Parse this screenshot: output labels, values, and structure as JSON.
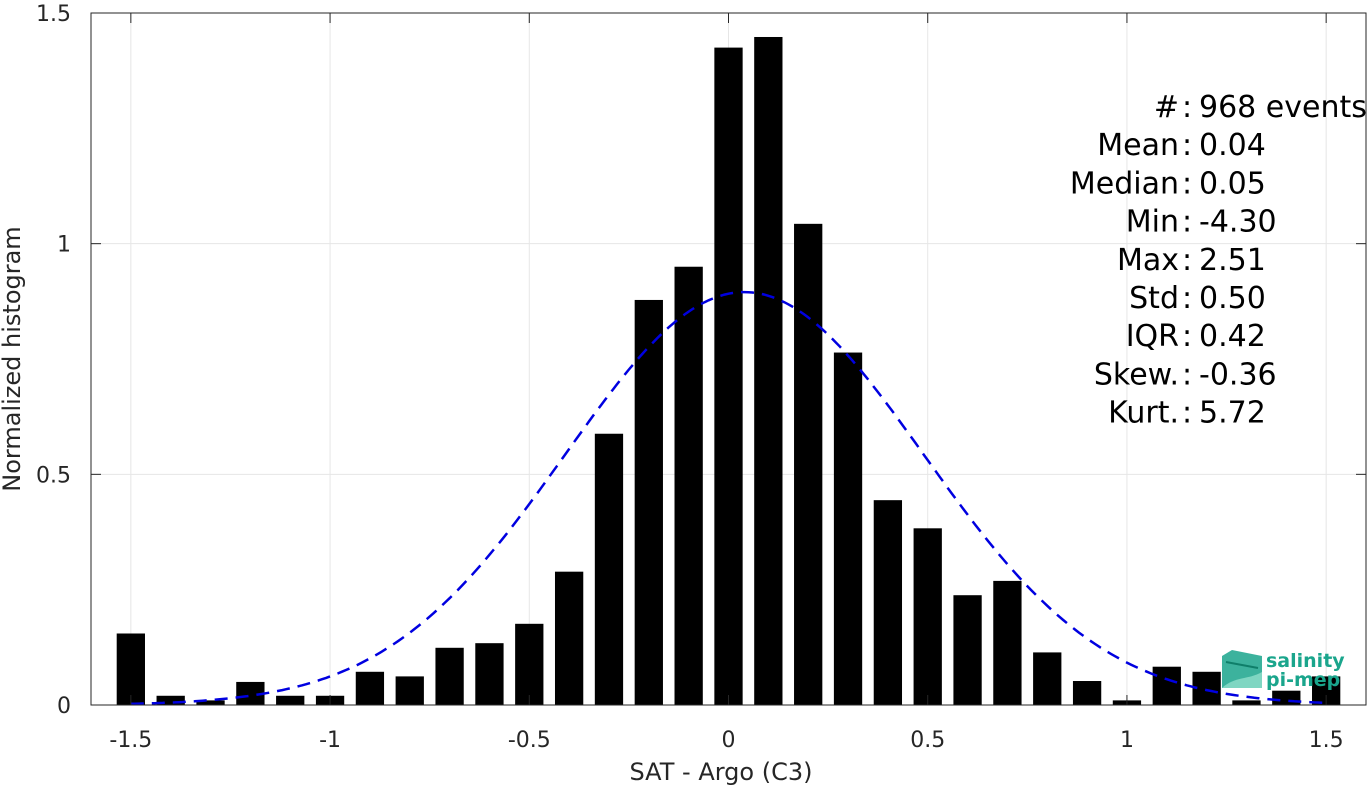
{
  "chart_data": {
    "type": "bar",
    "xlabel": "SAT - Argo (C3)",
    "ylabel": "Normalized histogram",
    "xlim": [
      -1.6,
      1.6
    ],
    "ylim": [
      0,
      1.5
    ],
    "xticks": [
      "-1.5",
      "-1",
      "-0.5",
      "0",
      "0.5",
      "1",
      "1.5"
    ],
    "yticks": [
      "0",
      "0.5",
      "1",
      "1.5"
    ],
    "grid": true,
    "bar_color": "#000000",
    "bin_width": 0.1,
    "x": [
      -1.5,
      -1.4,
      -1.3,
      -1.2,
      -1.1,
      -1.0,
      -0.9,
      -0.8,
      -0.7,
      -0.6,
      -0.5,
      -0.4,
      -0.3,
      -0.2,
      -0.1,
      0.0,
      0.1,
      0.2,
      0.3,
      0.4,
      0.5,
      0.6,
      0.7,
      0.8,
      0.9,
      1.0,
      1.1,
      1.2,
      1.3,
      1.4,
      1.5
    ],
    "values": [
      0.155,
      0.02,
      0.01,
      0.05,
      0.02,
      0.02,
      0.072,
      0.062,
      0.124,
      0.134,
      0.176,
      0.289,
      0.588,
      0.878,
      0.95,
      1.425,
      1.448,
      1.043,
      0.764,
      0.444,
      0.383,
      0.238,
      0.269,
      0.114,
      0.052,
      0.01,
      0.083,
      0.072,
      0.01,
      0.031,
      0.062
    ],
    "fit": {
      "type": "gaussian",
      "label": "Gaussian fit (dashed)",
      "mean": 0.04,
      "std": 0.45,
      "peak": 0.895,
      "color": "#0000e0"
    },
    "stats": [
      {
        "label": "#  ",
        "value": "968 events"
      },
      {
        "label": "Mean",
        "value": "0.04"
      },
      {
        "label": "Median",
        "value": "0.05"
      },
      {
        "label": "Min",
        "value": "-4.30"
      },
      {
        "label": "Max",
        "value": "2.51"
      },
      {
        "label": "Std",
        "value": "0.50"
      },
      {
        "label": "IQR",
        "value": "0.42"
      },
      {
        "label": "Skew.",
        "value": "-0.36"
      },
      {
        "label": "Kurt.",
        "value": "5.72"
      }
    ]
  },
  "logo": {
    "line1": "salinity",
    "line2": "pi-mep",
    "color": "#1aa58c"
  }
}
